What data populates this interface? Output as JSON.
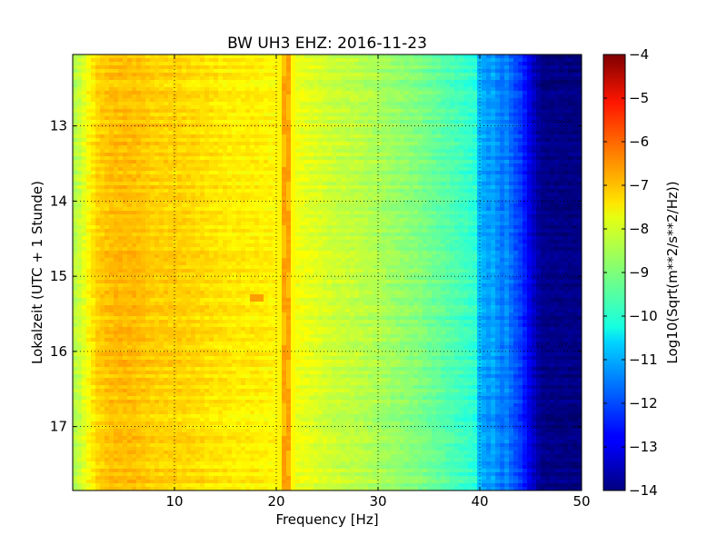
{
  "chart_data": {
    "type": "heatmap",
    "title": "BW UH3 EHZ: 2016-11-23",
    "xlabel": "Frequency [Hz]",
    "ylabel": "Lokalzeit (UTC + 1 Stunde)",
    "xlim": [
      0,
      50
    ],
    "ylim": [
      17.85,
      12.05
    ],
    "y_inverted": true,
    "x_ticks": [
      10,
      20,
      30,
      40,
      50
    ],
    "x_tick_labels": [
      "10",
      "20",
      "30",
      "40",
      "50"
    ],
    "y_ticks": [
      13,
      14,
      15,
      16,
      17
    ],
    "y_tick_labels": [
      "13",
      "14",
      "15",
      "16",
      "17"
    ],
    "grid": true,
    "colormap": "jet",
    "colorbar": {
      "label": "Log10(Sqrt(m**2/s**2/Hz))",
      "range": [
        -14,
        -4
      ],
      "ticks": [
        -4,
        -5,
        -6,
        -7,
        -8,
        -9,
        -10,
        -11,
        -12,
        -13,
        -14
      ],
      "tick_labels": [
        "−4",
        "−5",
        "−6",
        "−7",
        "−8",
        "−9",
        "−10",
        "−11",
        "−12",
        "−13",
        "−14"
      ]
    },
    "frequency_profile": {
      "frequency_hz": [
        0,
        0.5,
        1.5,
        2.5,
        4,
        6,
        8,
        10,
        12,
        14,
        16,
        18,
        20,
        20.5,
        21,
        21.5,
        22,
        24,
        26,
        28,
        30,
        32,
        34,
        36,
        38,
        39.5,
        40,
        41,
        41.5,
        42,
        42.5,
        43,
        43.5,
        44,
        44.5,
        45,
        46,
        50
      ],
      "log10_psd": [
        -8.5,
        -8.4,
        -7.8,
        -7.3,
        -7.1,
        -7.1,
        -7.3,
        -7.3,
        -7.4,
        -7.5,
        -7.6,
        -7.6,
        -7.7,
        -7.6,
        -6.8,
        -7.6,
        -7.9,
        -8.1,
        -8.3,
        -8.4,
        -8.6,
        -8.8,
        -9.0,
        -9.3,
        -9.6,
        -9.8,
        -11.0,
        -11.3,
        -11.0,
        -11.8,
        -11.3,
        -11.7,
        -12.0,
        -12.2,
        -12.6,
        -13.1,
        -13.9,
        -14.0
      ]
    },
    "features": [
      {
        "label": "narrow peak",
        "frequency_hz": 21,
        "log10_psd": -6.8
      },
      {
        "label": "short burst",
        "frequency_hz": 18,
        "time": 15.3,
        "log10_psd": -6.8
      }
    ]
  }
}
